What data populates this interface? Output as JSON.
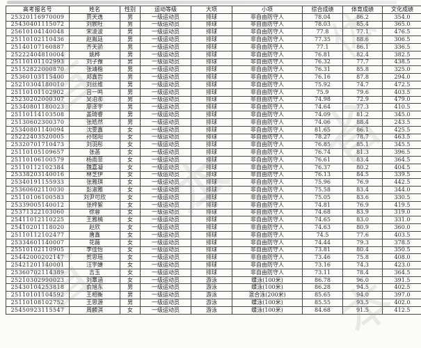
{
  "watermark": {
    "glyphs": [
      "者",
      "体",
      "省",
      "本",
      "省",
      "本"
    ]
  },
  "table": {
    "col_keys": [
      "exam-id",
      "name",
      "gender",
      "athlete-level",
      "sport",
      "event",
      "overall-score",
      "sports-score",
      "culture-score"
    ],
    "headers": [
      "高考报名号",
      "姓名",
      "性别",
      "运动等级",
      "大项",
      "小项",
      "综合成绩",
      "体育成绩",
      "文化成绩"
    ],
    "rows": [
      [
        "25320116970009",
        "贾天逸",
        "男",
        "一级运动员",
        "排球",
        "非自由防守人",
        "78.04",
        "86.2",
        "354.0"
      ],
      [
        "25430401115072",
        "刘宸旺",
        "男",
        "一级运动员",
        "排球",
        "非自由防守人",
        "78.03",
        "85.4",
        "365.0"
      ],
      [
        "25610104140048",
        "宋凌波",
        "男",
        "一级运动员",
        "排球",
        "非自由防守人",
        "77.8",
        "77.1",
        "476.5"
      ],
      [
        "25110102110436",
        "赵胤廷",
        "男",
        "一级运动员",
        "排球",
        "非自由防守人",
        "77.35",
        "88.6",
        "306.5"
      ],
      [
        "25140107160887",
        "齐天骄",
        "男",
        "一级运动员",
        "排球",
        "非自由防守人",
        "77.1",
        "86.1",
        "336.5"
      ],
      [
        "25222404810004",
        "姚桦",
        "男",
        "一级运动员",
        "排球",
        "非自由防守人",
        "76.81",
        "82.4",
        "382.5"
      ],
      [
        "25110101102993",
        "刘子豫",
        "男",
        "一级运动员",
        "排球",
        "非自由防守人",
        "76.32",
        "77.7",
        "438.5"
      ],
      [
        "25152822000870",
        "张靖楷",
        "男",
        "一级运动员",
        "排球",
        "非自由防守人",
        "76.31",
        "85.8",
        "325.0"
      ],
      [
        "25360103115400",
        "郑鑫哲",
        "男",
        "一级运动员",
        "排球",
        "非自由防守人",
        "76.16",
        "87.8",
        "294.0"
      ],
      [
        "25210304180010",
        "刘丝维",
        "男",
        "一级运动员",
        "排球",
        "非自由防守人",
        "75.92",
        "74.7",
        "472.5"
      ],
      [
        "25110101102902",
        "吕一鸣",
        "男",
        "一级运动员",
        "排球",
        "非自由防守人",
        "75.9",
        "79.6",
        "403.5"
      ],
      [
        "25230202000307",
        "吴泊澎",
        "男",
        "一级运动员",
        "排球",
        "非自由防守人",
        "74.98",
        "72.9",
        "479.0"
      ],
      [
        "25340801180023",
        "廖泽宇",
        "男",
        "一级运动员",
        "排球",
        "非自由防守人",
        "74.64",
        "77.3",
        "410.5"
      ],
      [
        "25110114103508",
        "盖琦睿",
        "男",
        "一级运动员",
        "排球",
        "非自由防守人",
        "74.09",
        "81.2",
        "345.0"
      ],
      [
        "25130602300370",
        "张皓然",
        "男",
        "一级运动员",
        "排球",
        "非自由防守人",
        "74.06",
        "88.4",
        "243.5"
      ],
      [
        "25340801140094",
        "沈雯鑫",
        "女",
        "一级运动员",
        "排球",
        "非自由防守人",
        "81.65",
        "86.1",
        "425.5"
      ],
      [
        "25222403520005",
        "孙铭阳",
        "女",
        "一级运动员",
        "排球",
        "非自由防守人",
        "78.27",
        "78.7",
        "463.5"
      ],
      [
        "25320701710473",
        "刘羽彤",
        "女",
        "一级运动员",
        "排球",
        "非自由防守人",
        "76.85",
        "85.1",
        "345.5"
      ],
      [
        "25110105109657",
        "张菡",
        "女",
        "一级运动员",
        "排球",
        "非自由防守人",
        "76.74",
        "81.3",
        "396.5"
      ],
      [
        "25110106100579",
        "杨雨菲",
        "女",
        "一级运动员",
        "排球",
        "非自由防守人",
        "76.61",
        "83.4",
        "364.5"
      ],
      [
        "25110112102384",
        "魏嘉凝",
        "女",
        "一级运动员",
        "排球",
        "非自由防守人",
        "76.37",
        "80.2",
        "404.5"
      ],
      [
        "25338203140016",
        "林芝伊",
        "女",
        "一级运动员",
        "排球",
        "非自由防守人",
        "76.13",
        "84.5",
        "339.5"
      ],
      [
        "25340191155933",
        "张雅琪",
        "女",
        "一级运动员",
        "排球",
        "非自由防守人",
        "75.96",
        "76.9",
        "442.5"
      ],
      [
        "25360602110030",
        "彭淑雅",
        "女",
        "一级运动员",
        "排球",
        "非自由防守人",
        "75.58",
        "83.4",
        "344.0"
      ],
      [
        "25110106100583",
        "刘尹可欣",
        "女",
        "一级运动员",
        "排球",
        "非自由防守人",
        "75.05",
        "83.6",
        "330.5"
      ],
      [
        "25339005140012",
        "张梓絮",
        "女",
        "一级运动员",
        "排球",
        "非自由防守人",
        "74.81",
        "76.9",
        "419.5"
      ],
      [
        "25371322103060",
        "徐蓉",
        "女",
        "一级运动员",
        "排球",
        "非自由防守人",
        "74.68",
        "83.9",
        "319.0"
      ],
      [
        "25411012110225",
        "王雅楠",
        "女",
        "一级运动员",
        "排球",
        "非自由防守人",
        "74.65",
        "83.0",
        "331.0"
      ],
      [
        "25410201118020",
        "赵欣",
        "女",
        "一级运动员",
        "排球",
        "非自由防守人",
        "74.63",
        "80.9",
        "360.0"
      ],
      [
        "25110112102477",
        "唐鑫",
        "女",
        "一级运动员",
        "排球",
        "非自由防守人",
        "74.5",
        "77.6",
        "403.5"
      ],
      [
        "25334601140007",
        "花薇",
        "女",
        "一级运动员",
        "排球",
        "非自由防守人",
        "74.44",
        "79.3",
        "378.5"
      ],
      [
        "25510102110905",
        "李佳怡",
        "女",
        "一级运动员",
        "排球",
        "非自由防守人",
        "73.81",
        "80.4",
        "350.5"
      ],
      [
        "25442000202147",
        "贺思瑶",
        "女",
        "一级运动员",
        "排球",
        "非自由防守人",
        "73.46",
        "75.8",
        "408.0"
      ],
      [
        "25421201140001",
        "汪宇婕",
        "女",
        "一级运动员",
        "排球",
        "非自由防守人",
        "73.16",
        "74.3",
        "423.0"
      ],
      [
        "25360702114389",
        "吉玉",
        "女",
        "一级运动员",
        "排球",
        "非自由防守人",
        "73.11",
        "78.4",
        "364.5"
      ],
      [
        "25210302990023",
        "刘覃涵",
        "女",
        "一级运动员",
        "游泳",
        "蝶泳(100米)",
        "86.78",
        "96.0",
        "391.5"
      ],
      [
        "25430104253818",
        "俞旭东",
        "男",
        "一级运动员",
        "游泳",
        "蝶泳(100米)",
        "86.28",
        "94.5",
        "402.5"
      ],
      [
        "25110101104592",
        "王相衡",
        "男",
        "一级运动员",
        "游泳",
        "混合泳(200米)",
        "85.65",
        "94.0",
        "397.0"
      ],
      [
        "25110108102752",
        "王思源",
        "男",
        "一级运动员",
        "游泳",
        "蝶泳(100米)",
        "85.55",
        "93.5",
        "402.0"
      ],
      [
        "25450923115547",
        "周麟淇",
        "女",
        "一级运动员",
        "游泳",
        "蝶泳(100米)",
        "84.68",
        "91.5",
        "412.5"
      ]
    ]
  }
}
